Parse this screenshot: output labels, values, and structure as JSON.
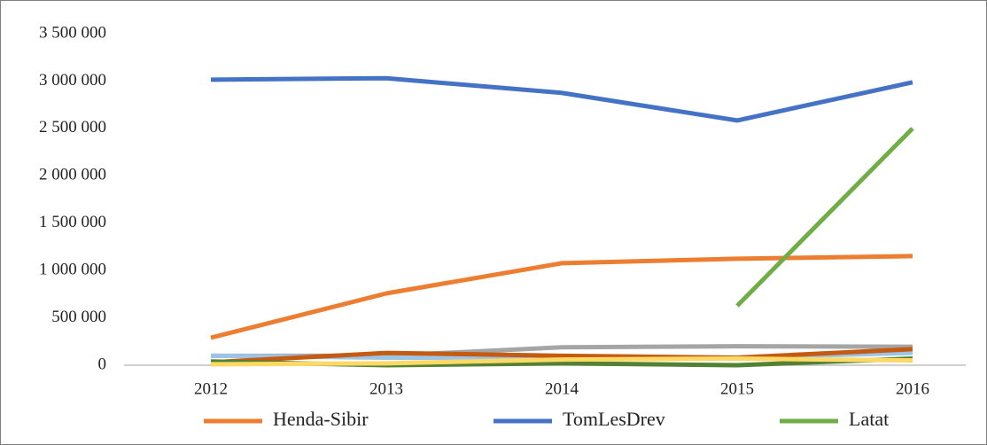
{
  "chart_data": {
    "type": "line",
    "x": [
      2012,
      2013,
      2014,
      2015,
      2016
    ],
    "xticks": [
      2012,
      2013,
      2014,
      2015,
      2016
    ],
    "ylim": [
      0,
      3500000
    ],
    "yticks": [
      0,
      {
        "value": 500000,
        "label": "500 000"
      },
      {
        "value": 1000000,
        "label": "1 000 000"
      },
      {
        "value": 1500000,
        "label": "1 500 000"
      },
      {
        "value": 2000000,
        "label": "2 000 000"
      },
      {
        "value": 2500000,
        "label": "2 500 000"
      },
      {
        "value": 3000000,
        "label": "3 000 000"
      },
      {
        "value": 3500000,
        "label": "3 500 000"
      }
    ],
    "grid": false,
    "legend": "bottom",
    "series": [
      {
        "color": "#a5a5a5",
        "values": [
          100000,
          100000,
          190000,
          200000,
          195000
        ]
      },
      {
        "color": "#9dc3e6",
        "values": [
          100000,
          80000,
          80000,
          80000,
          130000
        ]
      },
      {
        "color": "#c55a11",
        "values": [
          30000,
          130000,
          100000,
          80000,
          170000
        ]
      },
      {
        "color": "#548235",
        "values": [
          40000,
          0,
          20000,
          0,
          70000
        ]
      },
      {
        "color": "#ffd966",
        "values": [
          10000,
          20000,
          60000,
          70000,
          50000
        ]
      },
      {
        "name": "Henda-Sibir",
        "color": "#ed7d31",
        "values": [
          290000,
          758000,
          1077000,
          1124000,
          1152000
        ]
      },
      {
        "name": "TomLesDrev",
        "color": "#4472c4",
        "values": [
          3015000,
          3030000,
          2875000,
          2584000,
          2987000
        ]
      },
      {
        "name": "Latat",
        "color": "#70ad47",
        "values": [
          null,
          null,
          null,
          627000,
          2500000
        ]
      }
    ]
  }
}
